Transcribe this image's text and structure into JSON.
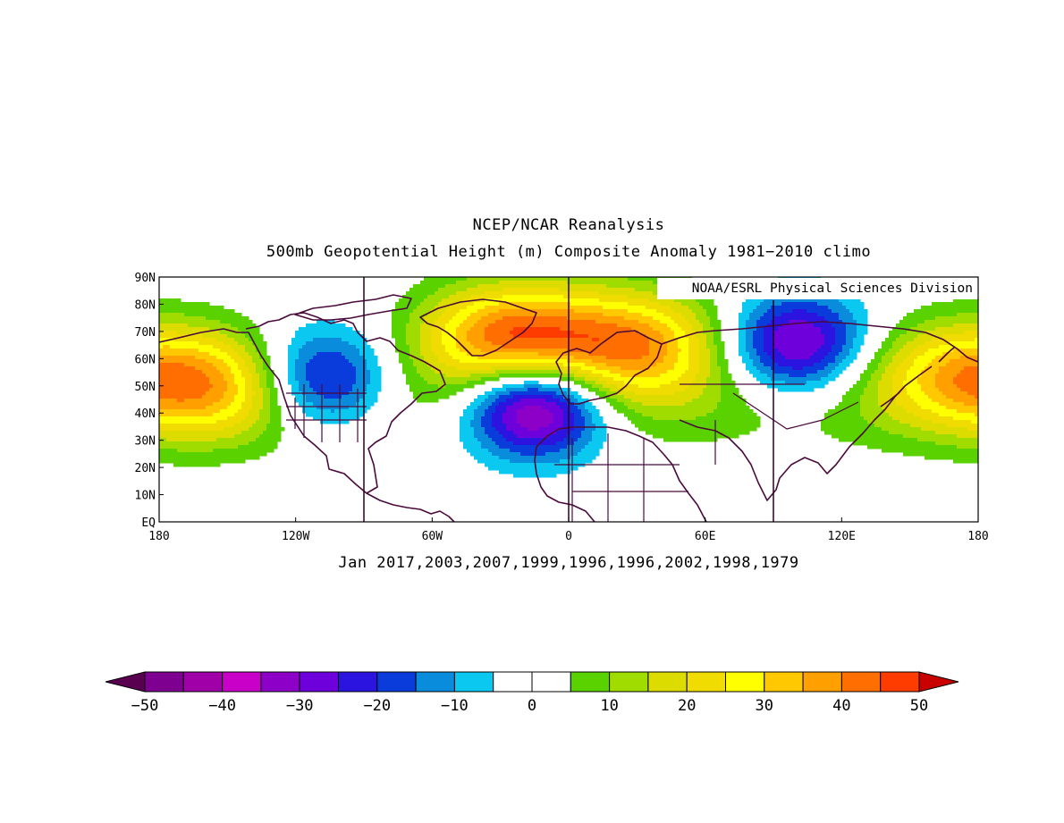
{
  "title_line1": "NCEP/NCAR Reanalysis",
  "title_line2": "500mb Geopotential Height (m) Composite Anomaly 1981-2010 climo",
  "credit": "NOAA/ESRL Physical Sciences Division",
  "subtitle": "Jan 2017,2003,2007,1999,1996,1996,2002,1998,1979",
  "lat_labels": [
    "90N",
    "80N",
    "70N",
    "60N",
    "50N",
    "40N",
    "30N",
    "20N",
    "10N",
    "EQ"
  ],
  "lon_labels": [
    "180",
    "120W",
    "60W",
    "0",
    "60E",
    "120E",
    "180"
  ],
  "colorbar": {
    "labels": [
      "-50",
      "-40",
      "-30",
      "-20",
      "-10",
      "0",
      "10",
      "20",
      "30",
      "40",
      "50"
    ],
    "colors": [
      "#5a0050",
      "#7d0090",
      "#a000a8",
      "#c800c8",
      "#8c00c8",
      "#6e00dc",
      "#2c14e0",
      "#0a3cdc",
      "#0a8cdc",
      "#0ac8f0",
      "#ffffff",
      "#ffffff",
      "#5ad200",
      "#a0dc00",
      "#dcdc00",
      "#f0dc00",
      "#ffff00",
      "#ffc800",
      "#ffa000",
      "#ff6e00",
      "#ff3c00",
      "#c80000"
    ]
  },
  "chart_data": {
    "type": "heatmap",
    "variable": "500mb Geopotential Height (m) Composite Anomaly",
    "units": "m",
    "lat_range": [
      0,
      90
    ],
    "lon_range": [
      -180,
      180
    ],
    "levels": [
      -50,
      -45,
      -40,
      -35,
      -30,
      -25,
      -20,
      -15,
      -10,
      -5,
      0,
      5,
      10,
      15,
      20,
      25,
      30,
      35,
      40,
      45,
      50
    ],
    "features": [
      {
        "kind": "high",
        "lon": -25,
        "lat": 67,
        "value": 45
      },
      {
        "kind": "high",
        "lon": 30,
        "lat": 65,
        "value": 35
      },
      {
        "kind": "high",
        "lon": -150,
        "lat": 50,
        "value": 25
      },
      {
        "kind": "high",
        "lon": 170,
        "lat": 55,
        "value": 25
      },
      {
        "kind": "low",
        "lon": -110,
        "lat": 52,
        "value": -35
      },
      {
        "kind": "low",
        "lon": -15,
        "lat": 43,
        "value": -50
      },
      {
        "kind": "low",
        "lon": 100,
        "lat": 65,
        "value": -35
      }
    ]
  }
}
